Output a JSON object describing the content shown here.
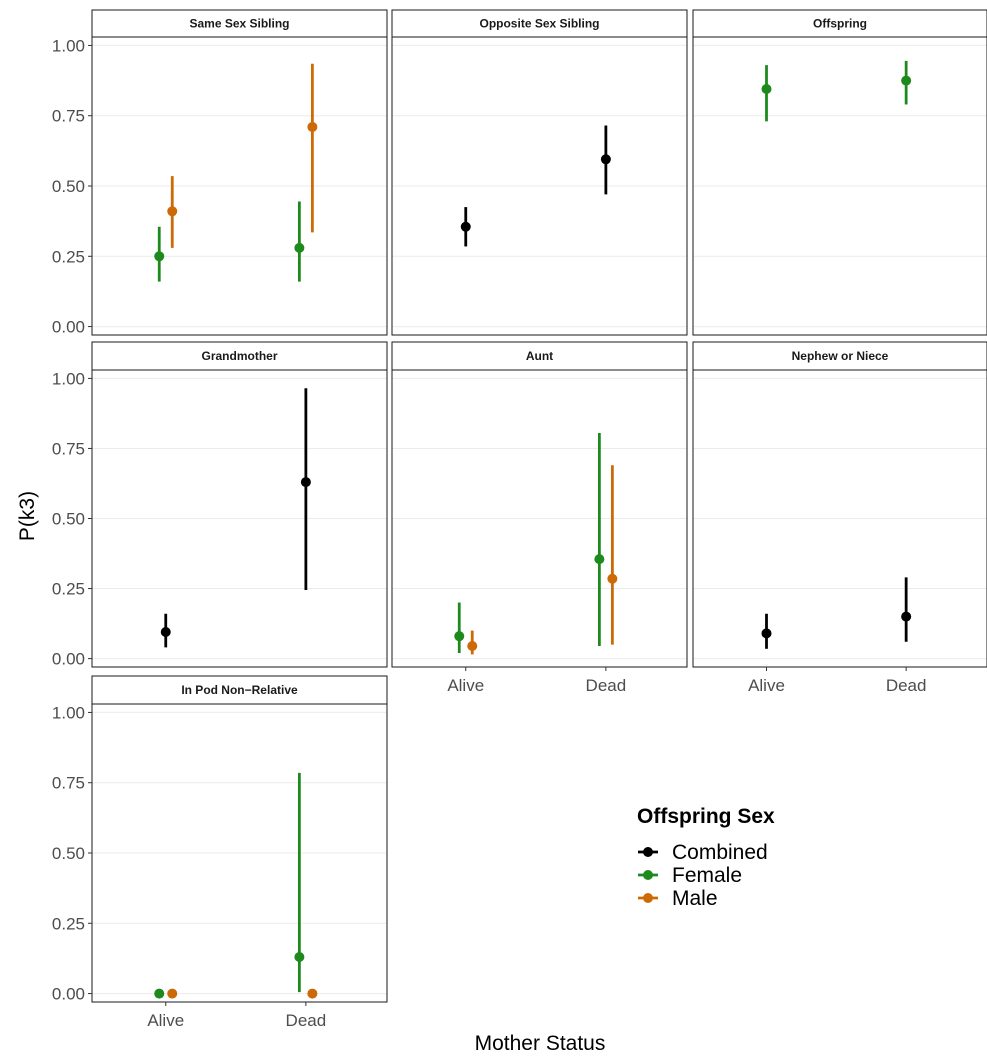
{
  "chart_data": {
    "type": "scatter",
    "subtype": "pointrange-facets",
    "xlabel": "Mother Status",
    "ylabel": "P(k3)",
    "x_categories": [
      "Alive",
      "Dead"
    ],
    "ylim": [
      -0.03,
      1.03
    ],
    "y_ticks": [
      0.0,
      0.25,
      0.5,
      0.75,
      1.0
    ],
    "y_tick_labels": [
      "0.00",
      "0.25",
      "0.50",
      "0.75",
      "1.00"
    ],
    "grid": true,
    "legend": {
      "title": "Offspring Sex",
      "placement": "right",
      "entries": [
        {
          "name": "Combined",
          "color": "#000000"
        },
        {
          "name": "Female",
          "color": "#1e8a1e"
        },
        {
          "name": "Male",
          "color": "#cc6a08"
        }
      ]
    },
    "panels": [
      {
        "title": "Same Sex Sibling",
        "points": [
          {
            "x": "Alive",
            "group": "Female",
            "y": 0.25,
            "lower": 0.16,
            "upper": 0.355
          },
          {
            "x": "Alive",
            "group": "Male",
            "y": 0.41,
            "lower": 0.28,
            "upper": 0.535
          },
          {
            "x": "Dead",
            "group": "Female",
            "y": 0.28,
            "lower": 0.16,
            "upper": 0.445
          },
          {
            "x": "Dead",
            "group": "Male",
            "y": 0.71,
            "lower": 0.335,
            "upper": 0.935
          }
        ]
      },
      {
        "title": "Opposite Sex Sibling",
        "points": [
          {
            "x": "Alive",
            "group": "Combined",
            "y": 0.355,
            "lower": 0.285,
            "upper": 0.425
          },
          {
            "x": "Dead",
            "group": "Combined",
            "y": 0.595,
            "lower": 0.47,
            "upper": 0.715
          }
        ]
      },
      {
        "title": "Offspring",
        "points": [
          {
            "x": "Alive",
            "group": "Female",
            "y": 0.845,
            "lower": 0.73,
            "upper": 0.93
          },
          {
            "x": "Dead",
            "group": "Female",
            "y": 0.875,
            "lower": 0.79,
            "upper": 0.945
          }
        ]
      },
      {
        "title": "Grandmother",
        "points": [
          {
            "x": "Alive",
            "group": "Combined",
            "y": 0.095,
            "lower": 0.04,
            "upper": 0.16
          },
          {
            "x": "Dead",
            "group": "Combined",
            "y": 0.63,
            "lower": 0.245,
            "upper": 0.965
          }
        ]
      },
      {
        "title": "Aunt",
        "points": [
          {
            "x": "Alive",
            "group": "Female",
            "y": 0.08,
            "lower": 0.02,
            "upper": 0.2
          },
          {
            "x": "Alive",
            "group": "Male",
            "y": 0.045,
            "lower": 0.015,
            "upper": 0.1
          },
          {
            "x": "Dead",
            "group": "Female",
            "y": 0.355,
            "lower": 0.045,
            "upper": 0.805
          },
          {
            "x": "Dead",
            "group": "Male",
            "y": 0.285,
            "lower": 0.05,
            "upper": 0.69
          }
        ]
      },
      {
        "title": "Nephew or Niece",
        "points": [
          {
            "x": "Alive",
            "group": "Combined",
            "y": 0.09,
            "lower": 0.035,
            "upper": 0.16
          },
          {
            "x": "Dead",
            "group": "Combined",
            "y": 0.15,
            "lower": 0.06,
            "upper": 0.29
          }
        ]
      },
      {
        "title": "In Pod Non−Relative",
        "points": [
          {
            "x": "Alive",
            "group": "Female",
            "y": 0.0,
            "lower": 0.0,
            "upper": 0.0
          },
          {
            "x": "Alive",
            "group": "Male",
            "y": 0.0,
            "lower": 0.0,
            "upper": 0.0
          },
          {
            "x": "Dead",
            "group": "Female",
            "y": 0.13,
            "lower": 0.005,
            "upper": 0.785
          },
          {
            "x": "Dead",
            "group": "Male",
            "y": 0.0,
            "lower": 0.0,
            "upper": 0.0
          }
        ]
      }
    ]
  }
}
